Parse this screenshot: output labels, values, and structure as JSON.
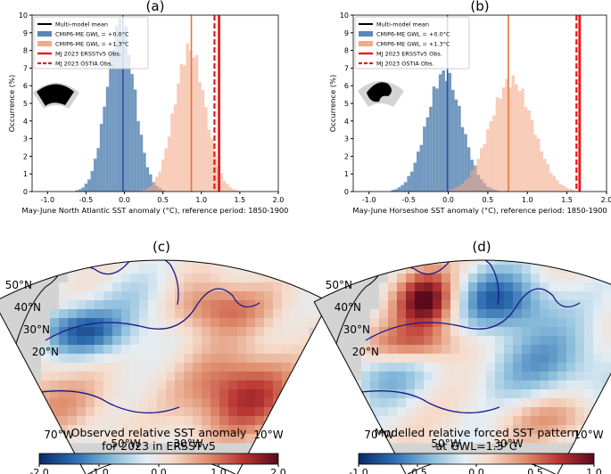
{
  "panels": {
    "a": {
      "label": "(a)"
    },
    "b": {
      "label": "(b)"
    },
    "c": {
      "label": "(c)"
    },
    "d": {
      "label": "(d)"
    }
  },
  "colors": {
    "gwl0": "#5b87b5",
    "gwl13": "#f2aa8a",
    "mean0": "#2f4fa0",
    "mean13": "#e8743b",
    "obs": "#e8191c",
    "coast": "#1a1a8c",
    "land": "#d3d3d3"
  },
  "chart_data": [
    {
      "type": "bar",
      "panel": "(a)",
      "title": "(a)",
      "xlabel": "May-June North Atlantic SST anomaly (°C), reference period: 1850-1900",
      "ylabel": "Occurrence (%)",
      "xlim": [
        -1.2,
        2.0
      ],
      "ylim": [
        0,
        10
      ],
      "xticks": [
        "-1.0",
        "-0.5",
        "0.0",
        "0.5",
        "1.0",
        "1.5",
        "2.0"
      ],
      "yticks": [
        "0",
        "1",
        "2",
        "3",
        "4",
        "5",
        "6",
        "7",
        "8",
        "9",
        "10"
      ],
      "legend": [
        "Multi-model mean",
        "CMIP6-ME GWL = +0.0°C",
        "CMIP6-ME GWL = +1.3°C",
        "MJ 2023 ERSSTv5 Obs.",
        "MJ 2023 OSTIA Obs."
      ],
      "series": [
        {
          "name": "CMIP6-ME GWL = +0.0°C",
          "center": -0.05,
          "sd": 0.18,
          "peak": 9.6
        },
        {
          "name": "CMIP6-ME GWL = +1.3°C",
          "center": 0.85,
          "sd": 0.2,
          "peak": 8.1
        }
      ],
      "lines": {
        "mean0": -0.02,
        "mean13": 0.87,
        "ersst": 1.23,
        "ostia": 1.17
      }
    },
    {
      "type": "bar",
      "panel": "(b)",
      "title": "(b)",
      "xlabel": "May-June Horseshoe SST anomaly (°C), reference period: 1850-1900",
      "ylabel": "Occurrence (%)",
      "xlim": [
        -1.2,
        2.0
      ],
      "ylim": [
        0,
        10
      ],
      "xticks": [
        "-1.0",
        "-0.5",
        "0.0",
        "0.5",
        "1.0",
        "1.5",
        "2.0"
      ],
      "yticks": [
        "0",
        "1",
        "2",
        "3",
        "4",
        "5",
        "6",
        "7",
        "8",
        "9",
        "10"
      ],
      "legend": [
        "Multi-model mean",
        "CMIP6-ME GWL = +0.0°C",
        "CMIP6-ME GWL = +1.3°C",
        "MJ 2023 ERSSTv5 Obs.",
        "MJ 2023 OSTIA Obs."
      ],
      "series": [
        {
          "name": "CMIP6-ME GWL = +0.0°C",
          "center": -0.05,
          "sd": 0.22,
          "peak": 6.7
        },
        {
          "name": "CMIP6-ME GWL = +1.3°C",
          "center": 0.8,
          "sd": 0.27,
          "peak": 6.3
        }
      ],
      "lines": {
        "mean0": -0.01,
        "mean13": 0.76,
        "ersst": 1.66,
        "ostia": 1.62
      }
    },
    {
      "type": "heatmap",
      "panel": "(c)",
      "title": "(c)",
      "lat_labels": [
        "50°N",
        "40°N",
        "30°N",
        "20°N"
      ],
      "lon_labels": [
        "70°W",
        "50°W",
        "30°W",
        "10°W"
      ],
      "colorbar_title": "Observed relative SST anomaly\nfor 2023 in ERSSTv5",
      "colorbar_ticks": [
        "-2.0",
        "-1.0",
        "0.0",
        "1.0",
        "2.0"
      ],
      "colorbar_range": [
        -2.0,
        2.0
      ]
    },
    {
      "type": "heatmap",
      "panel": "(d)",
      "title": "(d)",
      "lat_labels": [
        "50°N",
        "40°N",
        "30°N",
        "20°N"
      ],
      "lon_labels": [
        "70°W",
        "50°W",
        "30°W",
        "10°W"
      ],
      "colorbar_title": "Modelled relative forced SST pattern\nat GWL=1.3°C",
      "colorbar_ticks": [
        "-1.0",
        "-0.5",
        "0.0",
        "0.5",
        "1.0"
      ],
      "colorbar_range": [
        -1.0,
        1.0
      ]
    }
  ]
}
